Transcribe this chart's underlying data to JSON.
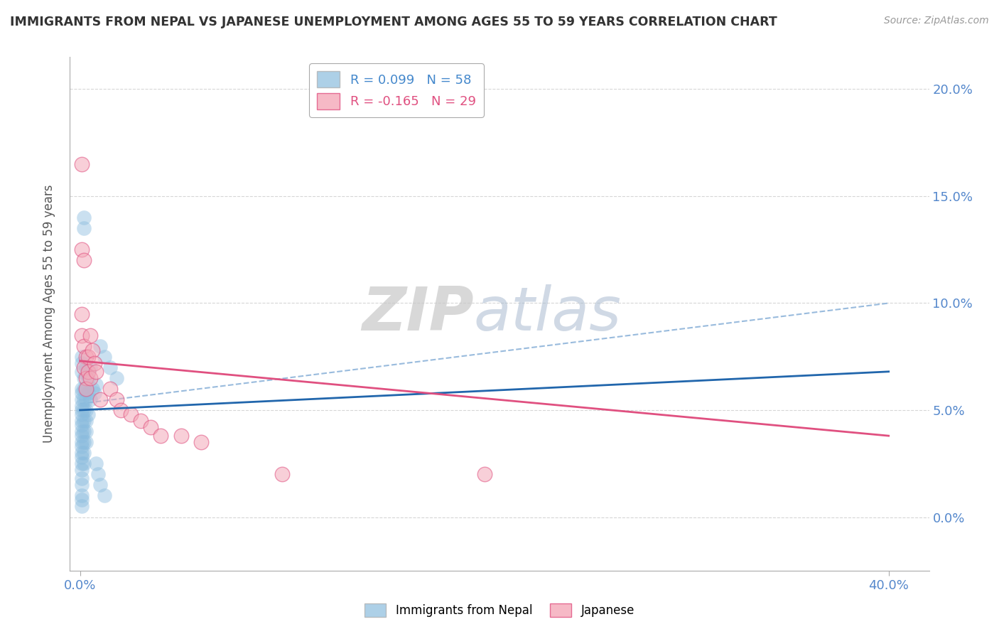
{
  "title": "IMMIGRANTS FROM NEPAL VS JAPANESE UNEMPLOYMENT AMONG AGES 55 TO 59 YEARS CORRELATION CHART",
  "source": "Source: ZipAtlas.com",
  "ylabel": "Unemployment Among Ages 55 to 59 years",
  "legend_entries": [
    {
      "label": "Immigrants from Nepal",
      "R": "R = 0.099",
      "N": "N = 58",
      "color": "#a8c8e8"
    },
    {
      "label": "Japanese",
      "R": "R = -0.165",
      "N": "N = 29",
      "color": "#f4a8b8"
    }
  ],
  "blue_scatter": [
    [
      0.001,
      0.075
    ],
    [
      0.001,
      0.072
    ],
    [
      0.001,
      0.068
    ],
    [
      0.001,
      0.06
    ],
    [
      0.001,
      0.058
    ],
    [
      0.001,
      0.055
    ],
    [
      0.001,
      0.052
    ],
    [
      0.001,
      0.05
    ],
    [
      0.001,
      0.048
    ],
    [
      0.001,
      0.045
    ],
    [
      0.001,
      0.043
    ],
    [
      0.001,
      0.04
    ],
    [
      0.001,
      0.038
    ],
    [
      0.001,
      0.035
    ],
    [
      0.001,
      0.033
    ],
    [
      0.001,
      0.03
    ],
    [
      0.001,
      0.028
    ],
    [
      0.001,
      0.025
    ],
    [
      0.001,
      0.022
    ],
    [
      0.001,
      0.018
    ],
    [
      0.001,
      0.015
    ],
    [
      0.001,
      0.01
    ],
    [
      0.001,
      0.008
    ],
    [
      0.001,
      0.005
    ],
    [
      0.002,
      0.065
    ],
    [
      0.002,
      0.06
    ],
    [
      0.002,
      0.055
    ],
    [
      0.002,
      0.05
    ],
    [
      0.002,
      0.045
    ],
    [
      0.002,
      0.04
    ],
    [
      0.002,
      0.035
    ],
    [
      0.002,
      0.03
    ],
    [
      0.002,
      0.025
    ],
    [
      0.003,
      0.07
    ],
    [
      0.003,
      0.06
    ],
    [
      0.003,
      0.055
    ],
    [
      0.003,
      0.05
    ],
    [
      0.003,
      0.045
    ],
    [
      0.003,
      0.04
    ],
    [
      0.003,
      0.035
    ],
    [
      0.004,
      0.065
    ],
    [
      0.004,
      0.058
    ],
    [
      0.004,
      0.048
    ],
    [
      0.005,
      0.07
    ],
    [
      0.005,
      0.055
    ],
    [
      0.006,
      0.06
    ],
    [
      0.007,
      0.058
    ],
    [
      0.008,
      0.062
    ],
    [
      0.002,
      0.135
    ],
    [
      0.002,
      0.14
    ],
    [
      0.01,
      0.08
    ],
    [
      0.012,
      0.075
    ],
    [
      0.015,
      0.07
    ],
    [
      0.018,
      0.065
    ],
    [
      0.01,
      0.015
    ],
    [
      0.012,
      0.01
    ],
    [
      0.008,
      0.025
    ],
    [
      0.009,
      0.02
    ]
  ],
  "pink_scatter": [
    [
      0.001,
      0.165
    ],
    [
      0.001,
      0.125
    ],
    [
      0.002,
      0.12
    ],
    [
      0.001,
      0.095
    ],
    [
      0.001,
      0.085
    ],
    [
      0.002,
      0.08
    ],
    [
      0.003,
      0.075
    ],
    [
      0.002,
      0.07
    ],
    [
      0.003,
      0.065
    ],
    [
      0.004,
      0.075
    ],
    [
      0.004,
      0.068
    ],
    [
      0.003,
      0.06
    ],
    [
      0.005,
      0.085
    ],
    [
      0.006,
      0.078
    ],
    [
      0.007,
      0.072
    ],
    [
      0.005,
      0.065
    ],
    [
      0.008,
      0.068
    ],
    [
      0.01,
      0.055
    ],
    [
      0.015,
      0.06
    ],
    [
      0.018,
      0.055
    ],
    [
      0.02,
      0.05
    ],
    [
      0.025,
      0.048
    ],
    [
      0.03,
      0.045
    ],
    [
      0.035,
      0.042
    ],
    [
      0.04,
      0.038
    ],
    [
      0.05,
      0.038
    ],
    [
      0.06,
      0.035
    ],
    [
      0.2,
      0.02
    ],
    [
      0.1,
      0.02
    ]
  ],
  "blue_trend_line": [
    [
      0.0,
      0.05
    ],
    [
      0.4,
      0.068
    ]
  ],
  "pink_trend_line": [
    [
      0.0,
      0.073
    ],
    [
      0.4,
      0.038
    ]
  ],
  "dashed_trend_line": [
    [
      0.0,
      0.053
    ],
    [
      0.4,
      0.1
    ]
  ],
  "xlim": [
    -0.005,
    0.42
  ],
  "ylim": [
    -0.025,
    0.215
  ],
  "yticks": [
    0.0,
    0.05,
    0.1,
    0.15,
    0.2
  ],
  "ytick_labels": [
    "0.0%",
    "5.0%",
    "10.0%",
    "15.0%",
    "20.0%"
  ],
  "xtick_positions": [
    0.0,
    0.4
  ],
  "xtick_labels": [
    "0.0%",
    "40.0%"
  ],
  "watermark_zip": "ZIP",
  "watermark_atlas": "atlas",
  "background_color": "#ffffff",
  "grid_color": "#cccccc",
  "blue_scatter_color": "#8bbcde",
  "blue_line_color": "#2166ac",
  "pink_scatter_color": "#f4a8b8",
  "pink_line_color": "#e05080",
  "dashed_color": "#99bbdd"
}
